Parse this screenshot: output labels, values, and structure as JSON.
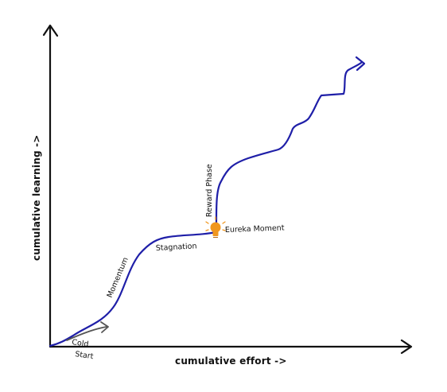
{
  "diagram": {
    "x_axis_label": "cumulative effort ->",
    "y_axis_label": "cumulative learning ->",
    "annotations": {
      "cold_start": [
        "Cold",
        "Start"
      ],
      "momentum": "Momentum",
      "stagnation": "Stagnation",
      "eureka": "Eureka Moment",
      "reward": "Reward Phase"
    },
    "icons": {
      "eureka": "lightbulb-icon",
      "cold_start": "arrow-right-icon"
    },
    "colors": {
      "curve": "#1f1fa8",
      "axis": "#111111",
      "bulb": "#f0961e",
      "cold_start_arrow": "#555555"
    }
  }
}
